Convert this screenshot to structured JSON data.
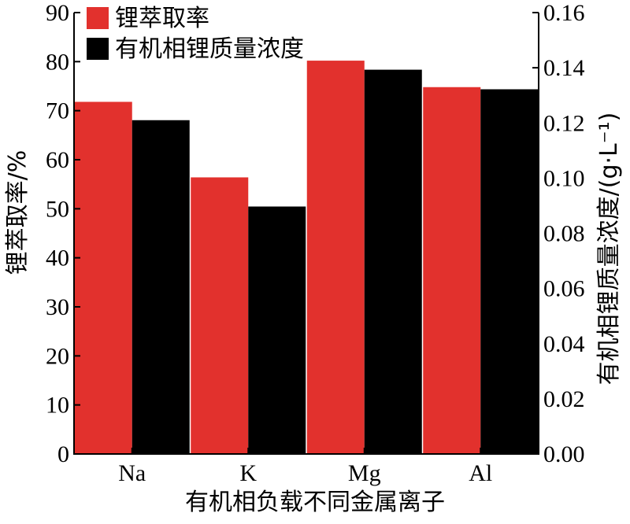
{
  "chart_data": {
    "type": "bar",
    "categories": [
      "Na",
      "K",
      "Mg",
      "Al"
    ],
    "series": [
      {
        "name": "锂萃取率",
        "axis": "left",
        "color": "#e2312d",
        "values": [
          71.8,
          56.4,
          80.2,
          74.8
        ]
      },
      {
        "name": "有机相锂质量浓度",
        "axis": "right",
        "color": "#000000",
        "values": [
          0.121,
          0.0897,
          0.1393,
          0.1322
        ]
      }
    ],
    "xlabel": "有机相负载不同金属离子",
    "ylabel_left": "锂萃取率/%",
    "ylabel_right": "有机相锂质量浓度/(g·L⁻¹)",
    "ylim_left": [
      0,
      90
    ],
    "ylim_right": [
      0,
      0.16
    ],
    "yticks_left": [
      "0",
      "10",
      "20",
      "30",
      "40",
      "50",
      "60",
      "70",
      "80",
      "90"
    ],
    "yticks_right": [
      "0.00",
      "0.02",
      "0.04",
      "0.06",
      "0.08",
      "0.10",
      "0.12",
      "0.14",
      "0.16"
    ],
    "legend_position": "top-left",
    "grid": false
  }
}
